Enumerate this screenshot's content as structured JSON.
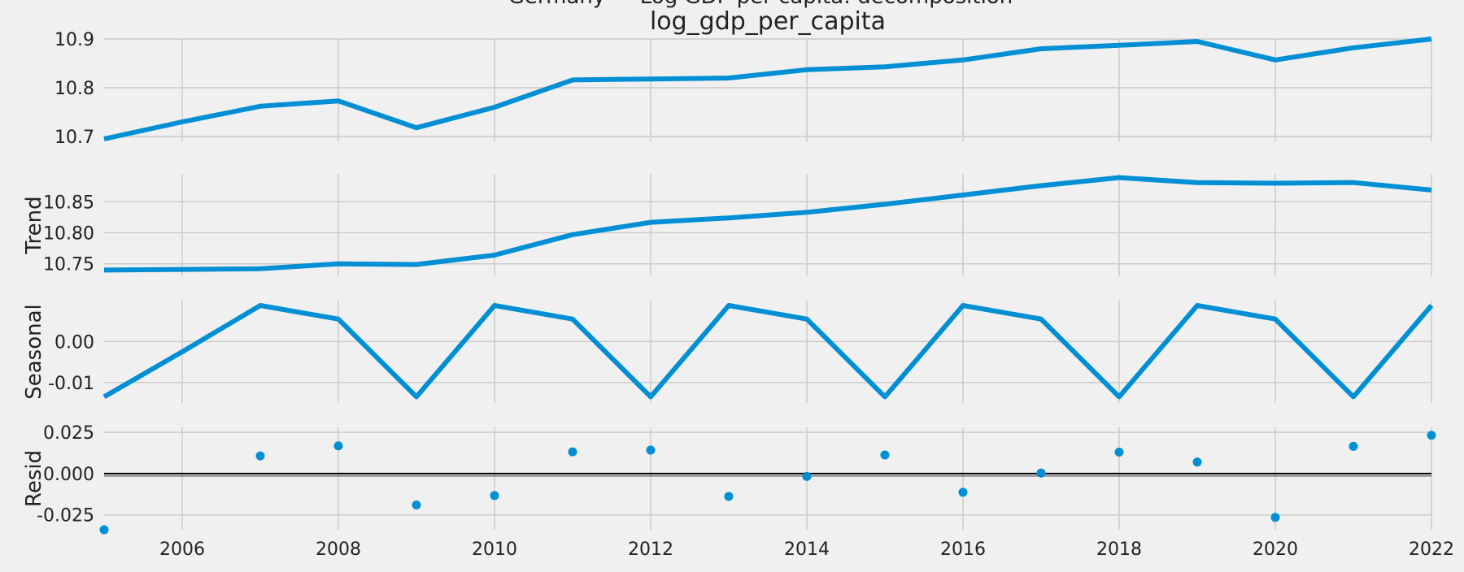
{
  "suptitle": "Germany — Log GDP per capita: decomposition",
  "colors": {
    "background": "#f0f0f0",
    "line": "#008fd5",
    "grid": "#cbcbcb",
    "zero_line": "#000000"
  },
  "chart_data": {
    "type": "line",
    "years": [
      2005,
      2006,
      2007,
      2008,
      2009,
      2010,
      2011,
      2012,
      2013,
      2014,
      2015,
      2016,
      2017,
      2018,
      2019,
      2020,
      2021,
      2022
    ],
    "xlim": [
      2005,
      2022
    ],
    "x_tick_labels": [
      "2006",
      "2008",
      "2010",
      "2012",
      "2014",
      "2016",
      "2018",
      "2020",
      "2022"
    ],
    "grid": true,
    "panels": [
      {
        "name": "observed",
        "title": "log_gdp_per_capita",
        "ylabel": "",
        "kind": "line",
        "ylim": [
          10.69,
          10.9
        ],
        "y_ticks": [
          10.7,
          10.8,
          10.9
        ],
        "y_tick_labels": [
          "10.7",
          "10.8",
          "10.9"
        ],
        "values": [
          10.695,
          10.73,
          10.762,
          10.773,
          10.718,
          10.76,
          10.816,
          10.818,
          10.82,
          10.837,
          10.843,
          10.857,
          10.88,
          10.887,
          10.895,
          10.857,
          10.882,
          10.9
        ]
      },
      {
        "name": "trend",
        "title": "",
        "ylabel": "Trend",
        "kind": "line",
        "ylim": [
          10.73,
          10.895
        ],
        "y_ticks": [
          10.75,
          10.8,
          10.85
        ],
        "y_tick_labels": [
          "10.75",
          "10.80",
          "10.85"
        ],
        "values": [
          10.74,
          10.741,
          10.742,
          10.75,
          10.749,
          10.764,
          10.797,
          10.817,
          10.824,
          10.833,
          10.846,
          10.861,
          10.876,
          10.889,
          10.881,
          10.88,
          10.881,
          10.869
        ]
      },
      {
        "name": "seasonal",
        "title": "",
        "ylabel": "Seasonal",
        "kind": "line",
        "ylim": [
          -0.015,
          0.01
        ],
        "y_ticks": [
          0.0,
          -0.01
        ],
        "y_tick_labels": [
          "0.00",
          "-0.01"
        ],
        "values": [
          -0.0135,
          -0.0025,
          0.0088,
          0.0055,
          -0.0135,
          0.0088,
          0.0055,
          -0.0135,
          0.0088,
          0.0055,
          -0.0135,
          0.0088,
          0.0055,
          -0.0135,
          0.0088,
          0.0055,
          -0.0135,
          0.0088
        ]
      },
      {
        "name": "resid",
        "title": "",
        "ylabel": "Resid",
        "kind": "scatter",
        "ylim": [
          -0.034,
          0.028
        ],
        "y_ticks": [
          0.025,
          0.0,
          -0.025
        ],
        "y_tick_labels": [
          "0.025",
          "0.000",
          "-0.025"
        ],
        "zero_line": true,
        "values": [
          -0.034,
          null,
          0.0107,
          0.0168,
          -0.019,
          -0.0133,
          0.0132,
          0.0142,
          -0.0138,
          -0.0017,
          0.0113,
          -0.0113,
          0.0003,
          0.013,
          0.007,
          -0.0265,
          0.0165,
          0.0232
        ]
      }
    ]
  }
}
